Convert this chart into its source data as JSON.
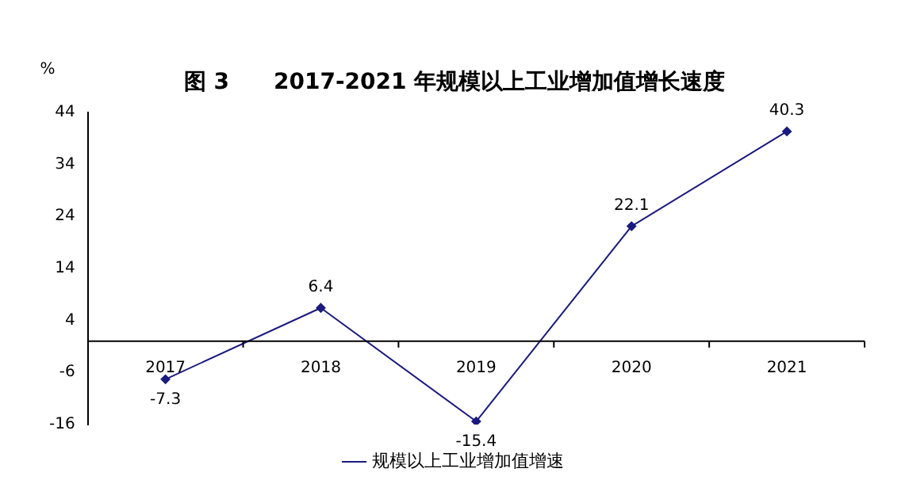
{
  "chart_data": {
    "type": "line",
    "title": "图 3　　2017-2021 年规模以上工业增加值增长速度",
    "ylabel": "%",
    "categories": [
      "2017",
      "2018",
      "2019",
      "2020",
      "2021"
    ],
    "series": [
      {
        "name": "规模以上工业增加值增速",
        "color": "#1a1a80",
        "values": [
          -7.3,
          6.4,
          -15.4,
          22.1,
          40.3
        ]
      }
    ],
    "ylim": [
      -16,
      44
    ],
    "yticks": [
      -16,
      -6,
      4,
      14,
      24,
      34,
      44
    ],
    "grid": false,
    "legend": "bottom",
    "marker": "diamond",
    "line_style": "solid",
    "data_labels": true
  }
}
